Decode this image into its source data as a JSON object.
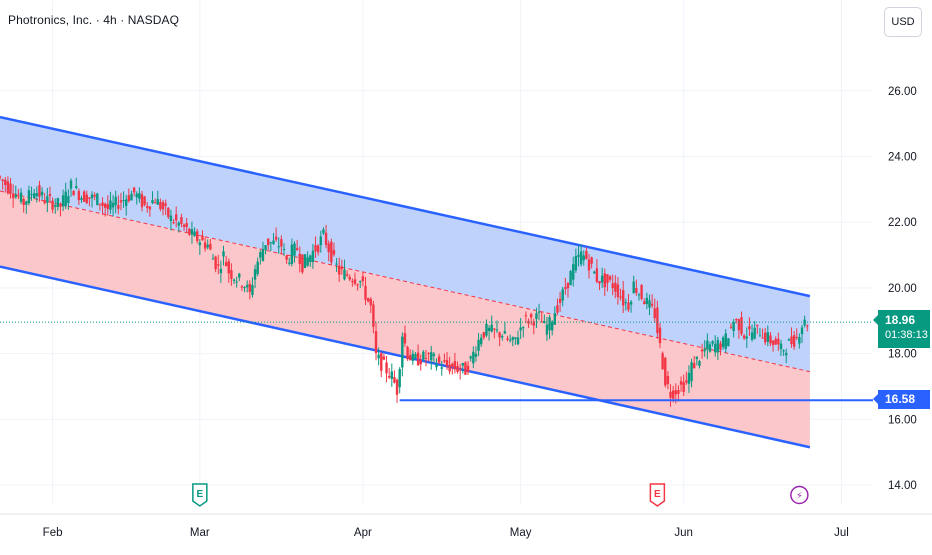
{
  "header": {
    "title": "Photronics, Inc. · 4h · NASDAQ",
    "currency": "USD"
  },
  "price_scale": {
    "last_price": "18.96",
    "countdown": "01:38:13",
    "level_price": "16.58",
    "colors": {
      "last": "#089981",
      "level": "#2962ff"
    }
  },
  "events": [
    {
      "date": "2025-03-01",
      "type": "earnings",
      "label": "E",
      "color": "#089981"
    },
    {
      "date": "2025-05-27",
      "type": "earnings",
      "label": "E",
      "color": "#f23645"
    },
    {
      "date": "2025-06-23",
      "type": "dividend",
      "label": "⚡",
      "color": "#9c27b0"
    }
  ],
  "chart_data": {
    "type": "candlestick",
    "title": "Photronics, Inc. · 4h · NASDAQ",
    "x_ticks": [
      "Feb",
      "Mar",
      "Apr",
      "May",
      "Jun",
      "Jul"
    ],
    "x_tick_dates": [
      "2025-02-01",
      "2025-03-01",
      "2025-04-01",
      "2025-05-01",
      "2025-06-01",
      "2025-07-01"
    ],
    "y_ticks": [
      "14.00",
      "16.00",
      "18.00",
      "20.00",
      "22.00",
      "24.00",
      "26.00"
    ],
    "x_range": [
      "2025-01-22",
      "2025-07-07"
    ],
    "ylim": [
      13.0,
      27.0
    ],
    "grid": true,
    "last_price": 18.96,
    "horizontal_level": {
      "price": 16.58,
      "from": "2025-04-08",
      "color": "#2962ff"
    },
    "regression_channel": {
      "colors": {
        "upper_fill": "#bcd0fb",
        "lower_fill": "#fbc4c8",
        "line": "#2962ff",
        "mid": "#f23645"
      },
      "upper": [
        [
          "2025-01-22",
          25.2
        ],
        [
          "2025-06-25",
          19.75
        ]
      ],
      "middle": [
        [
          "2025-01-22",
          22.95
        ],
        [
          "2025-06-25",
          17.45
        ]
      ],
      "lower": [
        [
          "2025-01-22",
          20.65
        ],
        [
          "2025-06-25",
          15.15
        ]
      ]
    },
    "series": [
      {
        "values": [
          [
            "2025-01-22",
            23.4
          ],
          [
            "2025-01-24",
            23.1
          ],
          [
            "2025-01-27",
            22.6
          ],
          [
            "2025-01-29",
            23.0
          ],
          [
            "2025-01-31",
            22.7
          ],
          [
            "2025-02-03",
            22.5
          ],
          [
            "2025-02-05",
            23.1
          ],
          [
            "2025-02-07",
            22.8
          ],
          [
            "2025-02-10",
            22.7
          ],
          [
            "2025-02-12",
            22.4
          ],
          [
            "2025-02-14",
            22.6
          ],
          [
            "2025-02-17",
            22.9
          ],
          [
            "2025-02-19",
            22.5
          ],
          [
            "2025-02-21",
            22.7
          ],
          [
            "2025-02-24",
            22.1
          ],
          [
            "2025-02-26",
            21.9
          ],
          [
            "2025-02-28",
            21.6
          ],
          [
            "2025-03-03",
            21.3
          ],
          [
            "2025-03-04",
            20.9
          ],
          [
            "2025-03-05",
            20.6
          ],
          [
            "2025-03-06",
            21.0
          ],
          [
            "2025-03-07",
            20.5
          ],
          [
            "2025-03-10",
            20.1
          ],
          [
            "2025-03-11",
            19.8
          ],
          [
            "2025-03-12",
            20.6
          ],
          [
            "2025-03-13",
            21.0
          ],
          [
            "2025-03-14",
            21.4
          ],
          [
            "2025-03-17",
            21.3
          ],
          [
            "2025-03-18",
            20.8
          ],
          [
            "2025-03-19",
            21.1
          ],
          [
            "2025-03-20",
            21.2
          ],
          [
            "2025-03-21",
            20.7
          ],
          [
            "2025-03-24",
            21.3
          ],
          [
            "2025-03-25",
            21.6
          ],
          [
            "2025-03-26",
            21.2
          ],
          [
            "2025-03-27",
            20.8
          ],
          [
            "2025-03-28",
            20.5
          ],
          [
            "2025-03-31",
            20.3
          ],
          [
            "2025-04-01",
            20.2
          ],
          [
            "2025-04-03",
            19.4
          ],
          [
            "2025-04-04",
            17.9
          ],
          [
            "2025-04-07",
            17.3
          ],
          [
            "2025-04-08",
            16.9
          ],
          [
            "2025-04-09",
            18.6
          ],
          [
            "2025-04-10",
            18.0
          ],
          [
            "2025-04-11",
            17.8
          ],
          [
            "2025-04-14",
            17.9
          ],
          [
            "2025-04-16",
            17.7
          ],
          [
            "2025-04-18",
            17.6
          ],
          [
            "2025-04-21",
            17.5
          ],
          [
            "2025-04-22",
            17.8
          ],
          [
            "2025-04-23",
            18.2
          ],
          [
            "2025-04-24",
            18.6
          ],
          [
            "2025-04-25",
            18.7
          ],
          [
            "2025-04-28",
            18.6
          ],
          [
            "2025-04-29",
            18.4
          ],
          [
            "2025-04-30",
            18.3
          ],
          [
            "2025-05-01",
            18.6
          ],
          [
            "2025-05-02",
            19.0
          ],
          [
            "2025-05-05",
            19.1
          ],
          [
            "2025-05-06",
            18.8
          ],
          [
            "2025-05-07",
            18.9
          ],
          [
            "2025-05-08",
            19.3
          ],
          [
            "2025-05-09",
            19.6
          ],
          [
            "2025-05-12",
            20.8
          ],
          [
            "2025-05-13",
            21.0
          ],
          [
            "2025-05-14",
            20.9
          ],
          [
            "2025-05-15",
            20.6
          ],
          [
            "2025-05-16",
            20.3
          ],
          [
            "2025-05-19",
            20.1
          ],
          [
            "2025-05-20",
            19.9
          ],
          [
            "2025-05-21",
            19.6
          ],
          [
            "2025-05-22",
            19.5
          ],
          [
            "2025-05-23",
            20.1
          ],
          [
            "2025-05-27",
            19.2
          ],
          [
            "2025-05-28",
            18.2
          ],
          [
            "2025-05-29",
            17.2
          ],
          [
            "2025-05-30",
            16.8
          ],
          [
            "2025-06-02",
            17.1
          ],
          [
            "2025-06-03",
            17.6
          ],
          [
            "2025-06-04",
            17.8
          ],
          [
            "2025-06-05",
            18.0
          ],
          [
            "2025-06-06",
            18.2
          ],
          [
            "2025-06-09",
            18.3
          ],
          [
            "2025-06-10",
            18.6
          ],
          [
            "2025-06-11",
            19.0
          ],
          [
            "2025-06-12",
            18.9
          ],
          [
            "2025-06-13",
            18.6
          ],
          [
            "2025-06-16",
            18.7
          ],
          [
            "2025-06-17",
            18.5
          ],
          [
            "2025-06-18",
            18.4
          ],
          [
            "2025-06-19",
            18.3
          ],
          [
            "2025-06-20",
            18.1
          ],
          [
            "2025-06-23",
            18.5
          ],
          [
            "2025-06-24",
            18.9
          ],
          [
            "2025-06-25",
            18.96
          ]
        ]
      }
    ]
  }
}
